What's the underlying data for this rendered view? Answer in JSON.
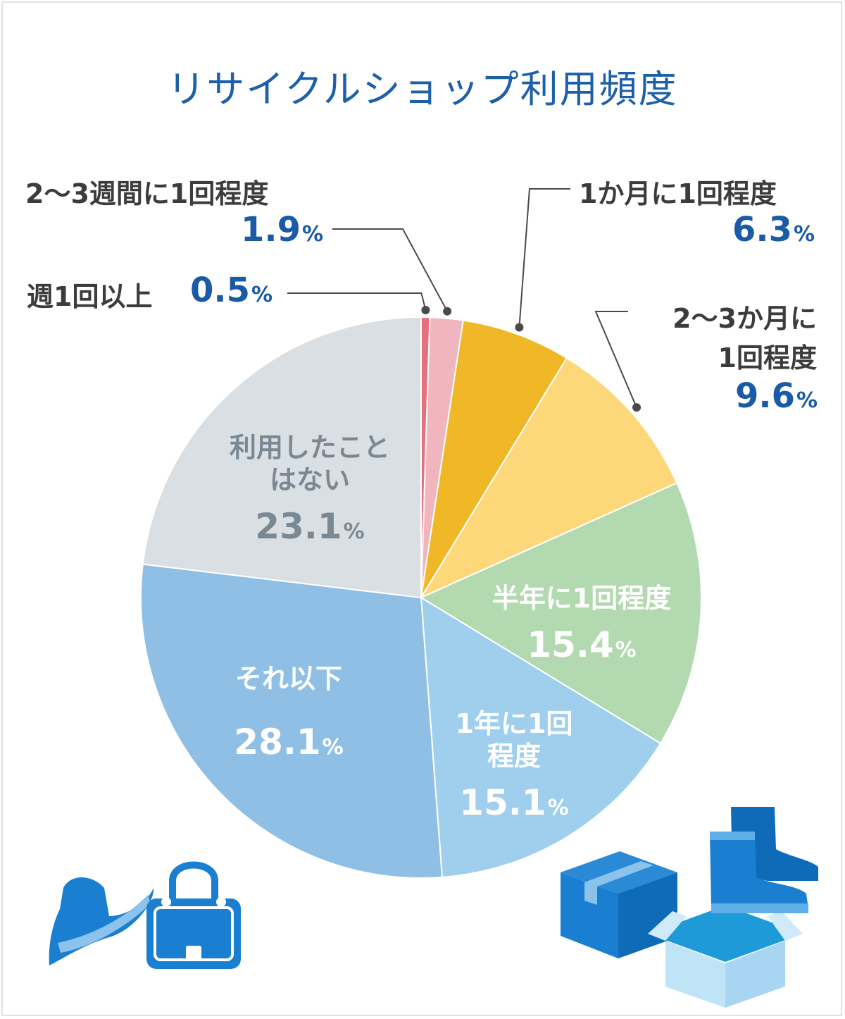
{
  "colors": {
    "title": "#1d5fa8",
    "percent_blue": "#1a5aa6",
    "leader": "#4a4a4a",
    "gray_text": "#7a8894"
  },
  "chart_data": {
    "type": "pie",
    "title": "リサイクルショップ利用頻度",
    "unit": "%",
    "start": "12 o'clock, clockwise",
    "slices": [
      {
        "label": "週1回以上",
        "value": 0.5,
        "display": "0.5",
        "color": "#e8707e"
      },
      {
        "label": "2〜3週間に1回程度",
        "value": 1.9,
        "display": "1.9",
        "color": "#f1b5bd"
      },
      {
        "label": "1か月に1回程度",
        "value": 6.3,
        "display": "6.3",
        "color": "#f0b727"
      },
      {
        "label": "2〜3か月に1回程度",
        "value": 9.6,
        "display": "9.6",
        "color": "#fdd87a"
      },
      {
        "label": "半年に1回程度",
        "value": 15.4,
        "display": "15.4",
        "color": "#b2d9b0"
      },
      {
        "label": "1年に1回程度",
        "value": 15.1,
        "display": "15.1",
        "color": "#9fcfec"
      },
      {
        "label": "それ以下",
        "value": 28.1,
        "display": "28.1",
        "color": "#90bfe5"
      },
      {
        "label": "利用したことはない",
        "value": 23.1,
        "display": "23.1",
        "color": "#dadfe4"
      }
    ]
  },
  "labels": {
    "weekly": {
      "text": "週1回以上",
      "value": "0.5"
    },
    "biweekly": {
      "text": "2〜3週間に1回程度",
      "value": "1.9"
    },
    "monthly": {
      "text": "1か月に1回程度",
      "value": "6.3"
    },
    "bimonthly": {
      "line1": "2〜3か月に",
      "line2": "1回程度",
      "value": "9.6"
    },
    "halfyear": {
      "text": "半年に1回程度",
      "value": "15.4"
    },
    "yearly": {
      "line1": "1年に1回",
      "line2": "程度",
      "value": "15.1"
    },
    "less": {
      "text": "それ以下",
      "value": "28.1"
    },
    "never": {
      "line1": "利用したこと",
      "line2": "はない",
      "value": "23.1"
    },
    "unit": "%"
  },
  "illustrations": [
    "hat-icon",
    "handbag-icon",
    "cardboard-box-icon",
    "open-box-icon",
    "boots-icon"
  ]
}
